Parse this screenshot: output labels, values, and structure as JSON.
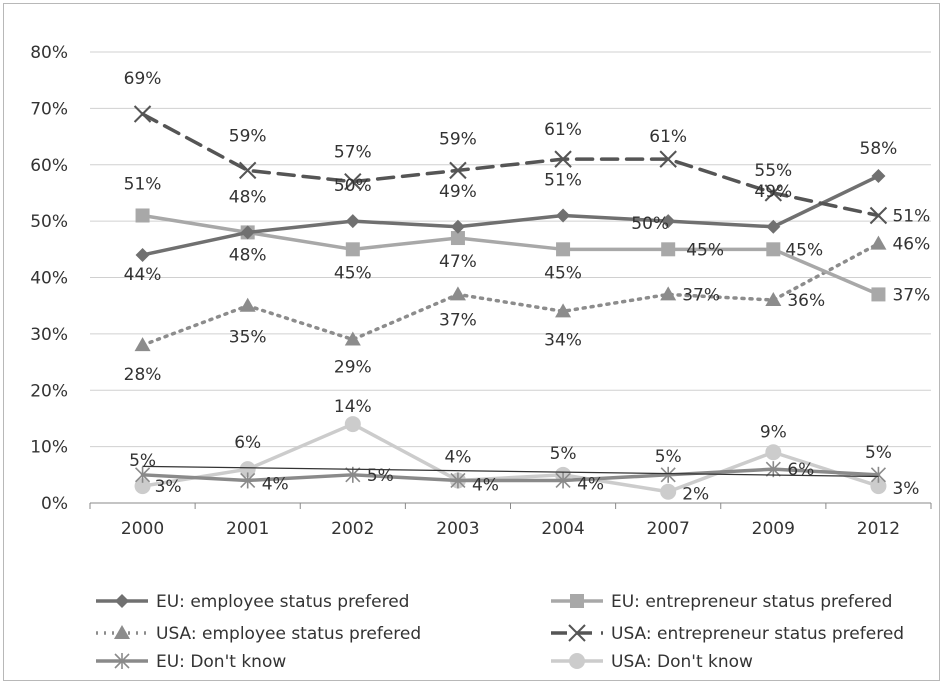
{
  "chart_data": {
    "type": "line",
    "title": "",
    "xlabel": "",
    "ylabel": "",
    "categories": [
      "2000",
      "2001",
      "2002",
      "2003",
      "2004",
      "2007",
      "2009",
      "2012"
    ],
    "ylim": [
      0,
      80
    ],
    "yticks": [
      "0%",
      "10%",
      "20%",
      "30%",
      "40%",
      "50%",
      "60%",
      "70%",
      "80%"
    ],
    "grid": true,
    "legend_position": "bottom",
    "series": [
      {
        "name": "EU: employee status prefered",
        "values": [
          44,
          48,
          50,
          49,
          51,
          50,
          49,
          58
        ],
        "labels": [
          "44%",
          "48%",
          "50%",
          "49%",
          "51%",
          "50%",
          "49%",
          "58%"
        ],
        "color": "#707070",
        "dash": "solid",
        "marker": "diamond"
      },
      {
        "name": "EU: entrepreneur status prefered",
        "values": [
          51,
          48,
          45,
          47,
          45,
          45,
          45,
          37
        ],
        "labels": [
          "51%",
          "48%",
          "45%",
          "47%",
          "45%",
          "45%",
          "45%",
          "37%"
        ],
        "color": "#a8a8a8",
        "dash": "solid",
        "marker": "square"
      },
      {
        "name": "USA: employee status prefered",
        "values": [
          28,
          35,
          29,
          37,
          34,
          37,
          36,
          46
        ],
        "labels": [
          "28%",
          "35%",
          "29%",
          "37%",
          "34%",
          "37%",
          "36%",
          "46%"
        ],
        "color": "#8c8c8c",
        "dash": "dotted",
        "marker": "triangle"
      },
      {
        "name": "USA: entrepreneur status prefered",
        "values": [
          69,
          59,
          57,
          59,
          61,
          61,
          55,
          51
        ],
        "labels": [
          "69%",
          "59%",
          "57%",
          "59%",
          "61%",
          "61%",
          "55%",
          "51%"
        ],
        "color": "#555555",
        "dash": "dashed",
        "marker": "x"
      },
      {
        "name": "EU: Don't know",
        "values": [
          5,
          4,
          5,
          4,
          4,
          5,
          6,
          5
        ],
        "labels": [
          "5%",
          "4%",
          "5%",
          "4%",
          "4%",
          "5%",
          "6%",
          "5%"
        ],
        "color": "#8a8a8a",
        "dash": "solid",
        "marker": "star"
      },
      {
        "name": "USA: Don't know",
        "values": [
          3,
          6,
          14,
          4,
          5,
          2,
          9,
          3
        ],
        "labels": [
          "3%",
          "6%",
          "14%",
          "4%",
          "5%",
          "2%",
          "9%",
          "3%"
        ],
        "color": "#cccccc",
        "dash": "solid",
        "marker": "circle"
      }
    ],
    "trendline": {
      "values": [
        6.5,
        4.7
      ],
      "color": "#333333"
    }
  }
}
